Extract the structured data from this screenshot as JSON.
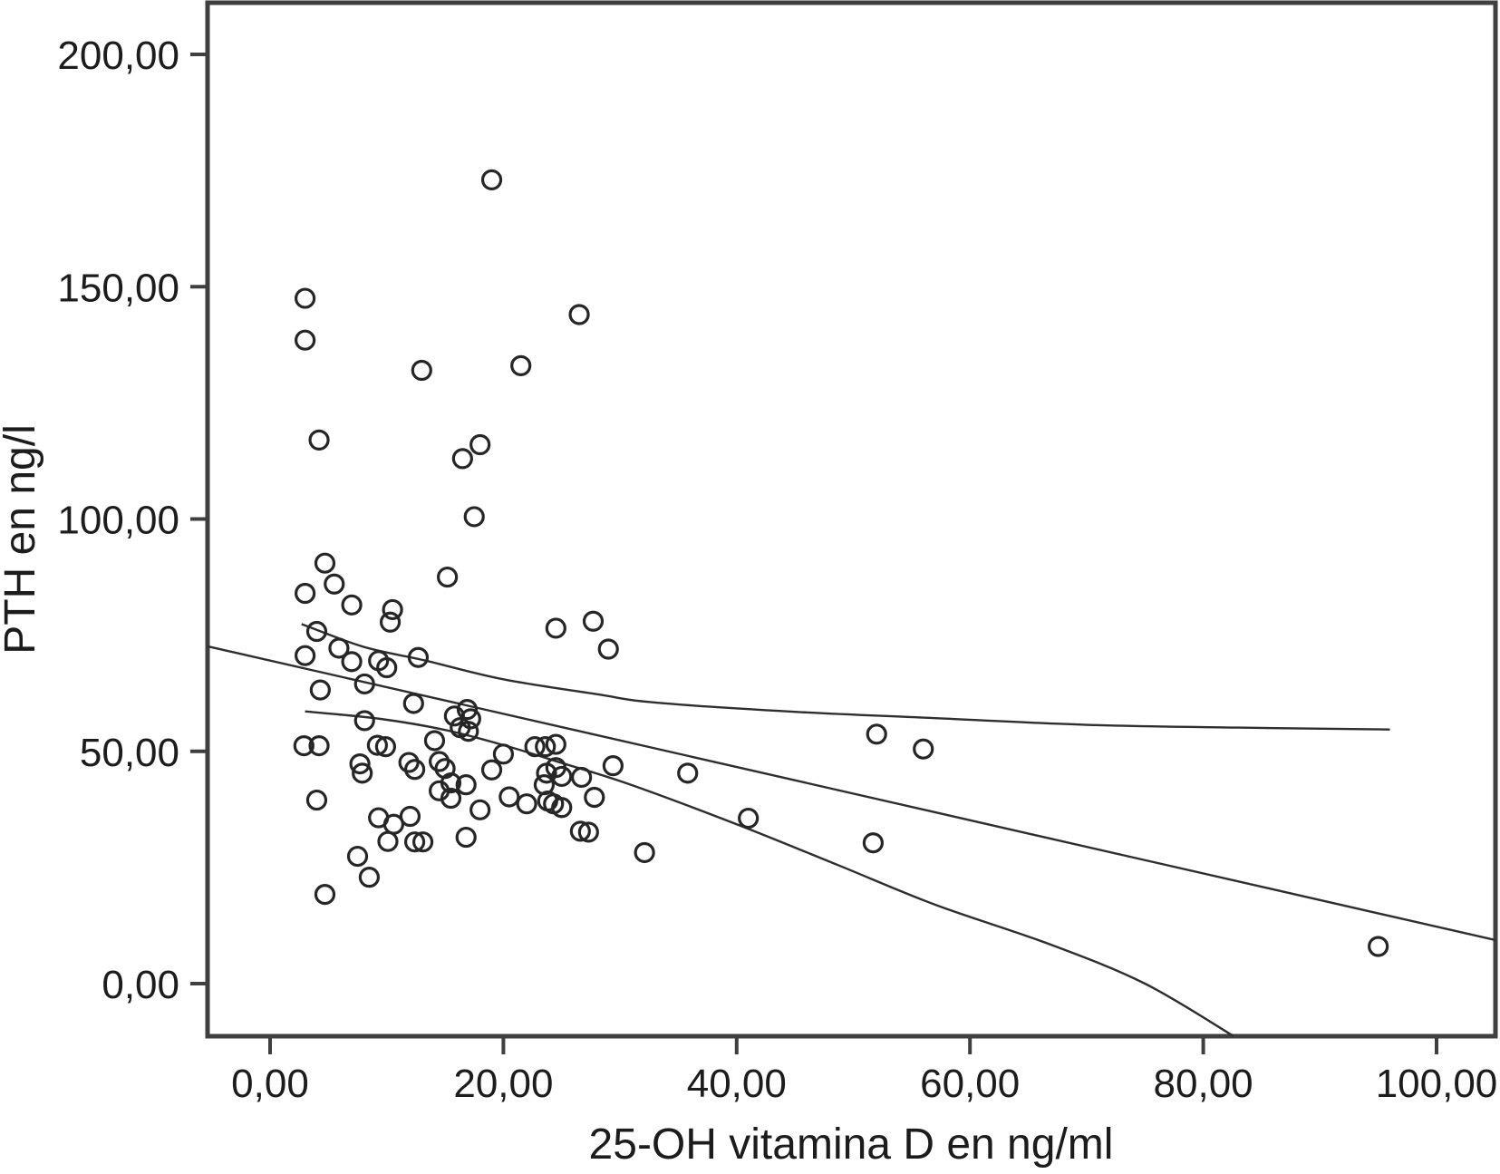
{
  "colors": {
    "background": "#ffffff",
    "axis_frame": "#3f3f3f",
    "marker_stroke": "#262626",
    "fit_line": "#2e2e2e",
    "text": "#1c1c1c"
  },
  "axes": {
    "y": {
      "title": "PTH en ng/l",
      "tick_labels": [
        "200,00",
        "150,00",
        "100,00",
        "50,00",
        "0,00"
      ],
      "tick_values": [
        200,
        150,
        100,
        50,
        0
      ]
    },
    "x": {
      "title": "25-OH vitamina D en ng/ml",
      "tick_labels": [
        "0,00",
        "20,00",
        "40,00",
        "60,00",
        "80,00",
        "100,00"
      ],
      "tick_values": [
        0,
        20,
        40,
        60,
        80,
        100
      ]
    }
  },
  "chart_data": {
    "type": "scatter",
    "title": "",
    "xlabel": "25-OH vitamina D en ng/ml",
    "ylabel": "PTH en ng/l",
    "xlim": [
      -5.4,
      105
    ],
    "ylim": [
      -11.3,
      211
    ],
    "grid": false,
    "legend": "none",
    "marker_style": "open-circle",
    "points": [
      [
        19,
        173
      ],
      [
        3,
        147.5
      ],
      [
        26.5,
        144
      ],
      [
        3,
        138.5
      ],
      [
        13,
        132
      ],
      [
        21.5,
        133
      ],
      [
        4.2,
        117
      ],
      [
        18,
        116
      ],
      [
        16.5,
        113
      ],
      [
        17.5,
        100.5
      ],
      [
        4.7,
        90.5
      ],
      [
        15.2,
        87.5
      ],
      [
        5.5,
        86
      ],
      [
        3,
        84
      ],
      [
        7,
        81.5
      ],
      [
        10.5,
        80.5
      ],
      [
        10.3,
        77.8
      ],
      [
        27.7,
        78
      ],
      [
        24.5,
        76.5
      ],
      [
        4,
        75.8
      ],
      [
        29,
        72
      ],
      [
        3,
        70.6
      ],
      [
        5.9,
        72.2
      ],
      [
        7,
        69.3
      ],
      [
        9.3,
        69.5
      ],
      [
        10,
        68
      ],
      [
        12.7,
        70.2
      ],
      [
        8.1,
        64.5
      ],
      [
        4.3,
        63.2
      ],
      [
        12.3,
        60.3
      ],
      [
        8.1,
        56.6
      ],
      [
        15.8,
        57.6
      ],
      [
        16.9,
        59
      ],
      [
        17.2,
        57
      ],
      [
        16.3,
        55.1
      ],
      [
        17,
        54.3
      ],
      [
        2.9,
        51.2
      ],
      [
        4.2,
        51.2
      ],
      [
        9.2,
        51.3
      ],
      [
        9.9,
        51
      ],
      [
        14.1,
        52.3
      ],
      [
        20,
        49.4
      ],
      [
        22.7,
        51
      ],
      [
        23.6,
        51
      ],
      [
        24.5,
        51.5
      ],
      [
        7.7,
        47.3
      ],
      [
        7.9,
        45.3
      ],
      [
        11.9,
        47.6
      ],
      [
        12.4,
        46.1
      ],
      [
        14.5,
        47.8
      ],
      [
        15,
        46.3
      ],
      [
        19,
        46
      ],
      [
        23.7,
        45.3
      ],
      [
        24.5,
        46.5
      ],
      [
        25,
        44.6
      ],
      [
        26.7,
        44.4
      ],
      [
        29.4,
        46.9
      ],
      [
        35.8,
        45.3
      ],
      [
        4,
        39.5
      ],
      [
        14.5,
        41.5
      ],
      [
        15.5,
        43.2
      ],
      [
        15.5,
        39.9
      ],
      [
        16.8,
        42.8
      ],
      [
        20.5,
        40.2
      ],
      [
        22,
        38.7
      ],
      [
        23.5,
        42.8
      ],
      [
        23.8,
        39.3
      ],
      [
        24.3,
        38.7
      ],
      [
        25,
        37.9
      ],
      [
        27.8,
        40.1
      ],
      [
        18,
        37.4
      ],
      [
        9.3,
        35.7
      ],
      [
        10.6,
        34.3
      ],
      [
        12,
        36
      ],
      [
        10.1,
        30.6
      ],
      [
        12.4,
        30.5
      ],
      [
        13.1,
        30.5
      ],
      [
        16.8,
        31.5
      ],
      [
        26.6,
        32.8
      ],
      [
        27.3,
        32.6
      ],
      [
        32.1,
        28.2
      ],
      [
        41,
        35.6
      ],
      [
        51.7,
        30.3
      ],
      [
        7.5,
        27.4
      ],
      [
        8.5,
        22.9
      ],
      [
        4.7,
        19.2
      ],
      [
        52,
        53.7
      ],
      [
        56,
        50.5
      ],
      [
        95,
        8
      ]
    ],
    "regression_line": {
      "x1": -5.36,
      "y1": 72.6,
      "x2": 105.0,
      "y2": 9.4
    },
    "ci_upper": [
      [
        2.7,
        77.4
      ],
      [
        8,
        72.5
      ],
      [
        13.2,
        69.6
      ],
      [
        20,
        65.5
      ],
      [
        28,
        62.3
      ],
      [
        33,
        60.5
      ],
      [
        45,
        58.5
      ],
      [
        56.5,
        57.2
      ],
      [
        70,
        55.7
      ],
      [
        83,
        55.1
      ],
      [
        96,
        54.7
      ]
    ],
    "ci_lower": [
      [
        3,
        58.6
      ],
      [
        9.4,
        57
      ],
      [
        15,
        54.6
      ],
      [
        20.2,
        51.2
      ],
      [
        25,
        47.5
      ],
      [
        30.7,
        43
      ],
      [
        40,
        34.3
      ],
      [
        48.7,
        25.5
      ],
      [
        57,
        17
      ],
      [
        66.7,
        8.6
      ],
      [
        75,
        0
      ],
      [
        82.6,
        -11.3
      ]
    ]
  }
}
